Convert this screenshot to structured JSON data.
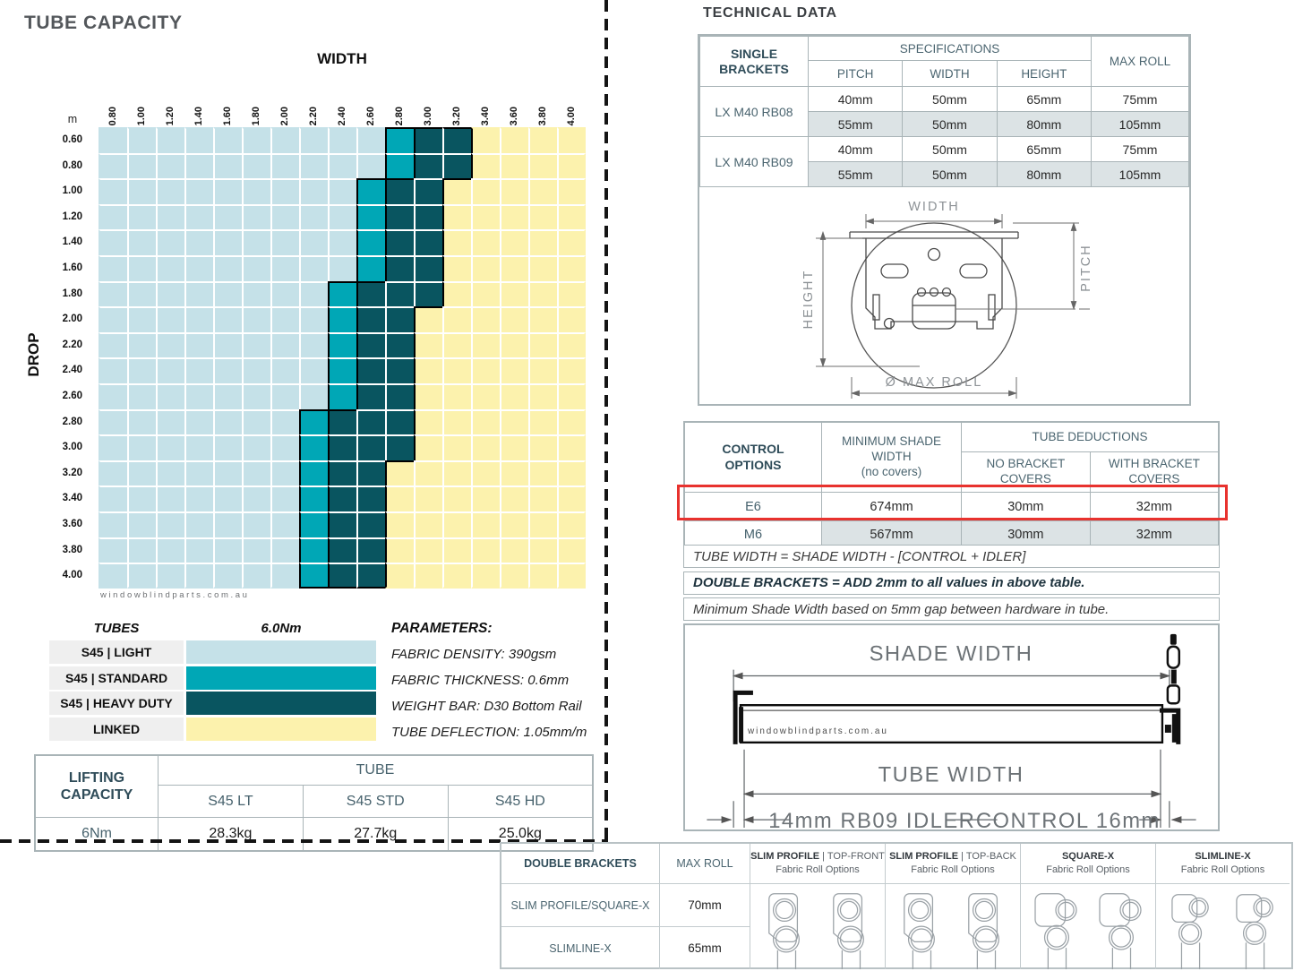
{
  "left": {
    "title": "TUBE CAPACITY",
    "chart": {
      "x_axis_title": "WIDTH",
      "y_axis_title": "DROP",
      "unit_label": "m",
      "x_ticks": [
        "0.80",
        "1.00",
        "1.20",
        "1.40",
        "1.60",
        "1.80",
        "2.00",
        "2.20",
        "2.40",
        "2.60",
        "2.80",
        "3.00",
        "3.20",
        "3.40",
        "3.60",
        "3.80",
        "4.00"
      ],
      "y_ticks": [
        "0.60",
        "0.80",
        "1.00",
        "1.20",
        "1.40",
        "1.60",
        "1.80",
        "2.00",
        "2.20",
        "2.40",
        "2.60",
        "2.80",
        "3.00",
        "3.20",
        "3.40",
        "3.60",
        "3.80",
        "4.00"
      ],
      "watermark": "windowblindparts.com.au"
    },
    "legend": {
      "title": "TUBES",
      "torque": "6.0Nm",
      "items": [
        {
          "label": "S45 | LIGHT",
          "zone": "L"
        },
        {
          "label": "S45 | STANDARD",
          "zone": "M"
        },
        {
          "label": "S45 | HEAVY DUTY",
          "zone": "D"
        },
        {
          "label": "LINKED",
          "zone": "Y"
        }
      ]
    },
    "parameters": {
      "title": "PARAMETERS:",
      "lines": [
        "FABRIC DENSITY: 390gsm",
        "FABRIC THICKNESS: 0.6mm",
        "WEIGHT BAR: D30 Bottom Rail",
        "TUBE DEFLECTION: 1.05mm/m"
      ]
    },
    "lifting": {
      "title_lines": [
        "LIFTING",
        "CAPACITY"
      ],
      "group_header": "TUBE",
      "columns": [
        "S45 LT",
        "S45 STD",
        "S45 HD"
      ],
      "row_label": "6Nm",
      "values": [
        "28.3kg",
        "27.7kg",
        "25.0kg"
      ]
    }
  },
  "right": {
    "title": "TECHNICAL DATA",
    "single_brackets": {
      "corner_lines": [
        "SINGLE",
        "BRACKETS"
      ],
      "spec_header": "SPECIFICATIONS",
      "spec_columns": [
        "PITCH",
        "WIDTH",
        "HEIGHT"
      ],
      "max_roll_header": "MAX ROLL",
      "groups": [
        {
          "model": "LX M40 RB08",
          "rows": [
            [
              "40mm",
              "50mm",
              "65mm",
              "75mm"
            ],
            [
              "55mm",
              "50mm",
              "80mm",
              "105mm"
            ]
          ]
        },
        {
          "model": "LX M40 RB09",
          "rows": [
            [
              "40mm",
              "50mm",
              "65mm",
              "75mm"
            ],
            [
              "55mm",
              "50mm",
              "80mm",
              "105mm"
            ]
          ]
        }
      ]
    },
    "bracket_diagram": {
      "width_label": "WIDTH",
      "height_label": "HEIGHT",
      "pitch_label": "PITCH",
      "max_roll_label": "Ø MAX ROLL"
    },
    "control_options": {
      "corner_lines": [
        "CONTROL",
        "OPTIONS"
      ],
      "min_shade_lines": [
        "MINIMUM SHADE",
        "WIDTH",
        "(no covers)"
      ],
      "deductions_header": "TUBE DEDUCTIONS",
      "deduction_columns": [
        "NO BRACKET COVERS",
        "WITH BRACKET COVERS"
      ],
      "rows": [
        {
          "option": "E6",
          "values": [
            "674mm",
            "30mm",
            "32mm"
          ],
          "highlighted": true
        },
        {
          "option": "M6",
          "values": [
            "567mm",
            "30mm",
            "32mm"
          ],
          "highlighted": false
        }
      ],
      "highlight_color": "#e8322e"
    },
    "notes": [
      {
        "text": "TUBE WIDTH = SHADE WIDTH - [CONTROL + IDLER]",
        "bold": false
      },
      {
        "text": "DOUBLE BRACKETS = ADD 2mm to all values in above table.",
        "bold": true
      },
      {
        "text": "Minimum Shade Width based on 5mm gap between hardware in tube.",
        "bold": false
      }
    ],
    "shade_diagram": {
      "shade_width_label": "SHADE WIDTH",
      "tube_width_label": "TUBE WIDTH",
      "idler_label": "14mm RB09 IDLER",
      "control_label": "CONTROL 16mm",
      "watermark": "windowblindparts.com.au"
    },
    "double_brackets": {
      "corner": "DOUBLE BRACKETS",
      "max_roll_header": "MAX ROLL",
      "profile_columns": [
        {
          "name": "SLIM PROFILE",
          "variant": "TOP-FRONT",
          "sub": "Fabric Roll Options",
          "shape": "slim"
        },
        {
          "name": "SLIM PROFILE",
          "variant": "TOP-BACK",
          "sub": "Fabric Roll Options",
          "shape": "slim"
        },
        {
          "name": "SQUARE-X",
          "variant": "",
          "sub": "Fabric Roll Options",
          "shape": "square"
        },
        {
          "name": "SLIMLINE-X",
          "variant": "",
          "sub": "Fabric Roll Options",
          "shape": "slimline"
        }
      ],
      "rows": [
        {
          "label": "SLIM PROFILE/SQUARE-X",
          "value": "70mm"
        },
        {
          "label": "SLIMLINE-X",
          "value": "65mm"
        }
      ]
    }
  },
  "chart_data": {
    "type": "heatmap",
    "title": "TUBE CAPACITY",
    "xlabel": "WIDTH",
    "ylabel": "DROP",
    "units": "m",
    "torque": "6.0Nm",
    "x": [
      0.8,
      1.0,
      1.2,
      1.4,
      1.6,
      1.8,
      2.0,
      2.2,
      2.4,
      2.6,
      2.8,
      3.0,
      3.2,
      3.4,
      3.6,
      3.8,
      4.0
    ],
    "y": [
      0.6,
      0.8,
      1.0,
      1.2,
      1.4,
      1.6,
      1.8,
      2.0,
      2.2,
      2.4,
      2.6,
      2.8,
      3.0,
      3.2,
      3.4,
      3.6,
      3.8,
      4.0
    ],
    "zone_labels": {
      "L": "S45 | LIGHT",
      "M": "S45 | STANDARD",
      "D": "S45 | HEAVY DUTY",
      "Y": "LINKED"
    },
    "zone_colors": {
      "L": "#c5e1e8",
      "M": "#00a7b6",
      "D": "#095560",
      "Y": "#fcf2ad"
    },
    "grid": [
      "LLLLLLLLLLMDDYYYY",
      "LLLLLLLLLLMDDYYYY",
      "LLLLLLLLLMDDYYYYY",
      "LLLLLLLLLMDDYYYYY",
      "LLLLLLLLLMDDYYYYY",
      "LLLLLLLLLMDDYYYYY",
      "LLLLLLLLMDDDYYYYY",
      "LLLLLLLLMDDYYYYYY",
      "LLLLLLLLMDDYYYYYY",
      "LLLLLLLLMDDYYYYYY",
      "LLLLLLLLMDDYYYYYY",
      "LLLLLLLMDDDYYYYYY",
      "LLLLLLLMDDDYYYYYY",
      "LLLLLLLMDDYYYYYYY",
      "LLLLLLLMDDYYYYYYY",
      "LLLLLLLMDDYYYYYYY",
      "LLLLLLLMDDYYYYYYY",
      "LLLLLLLMDDYYYYYYY"
    ]
  }
}
